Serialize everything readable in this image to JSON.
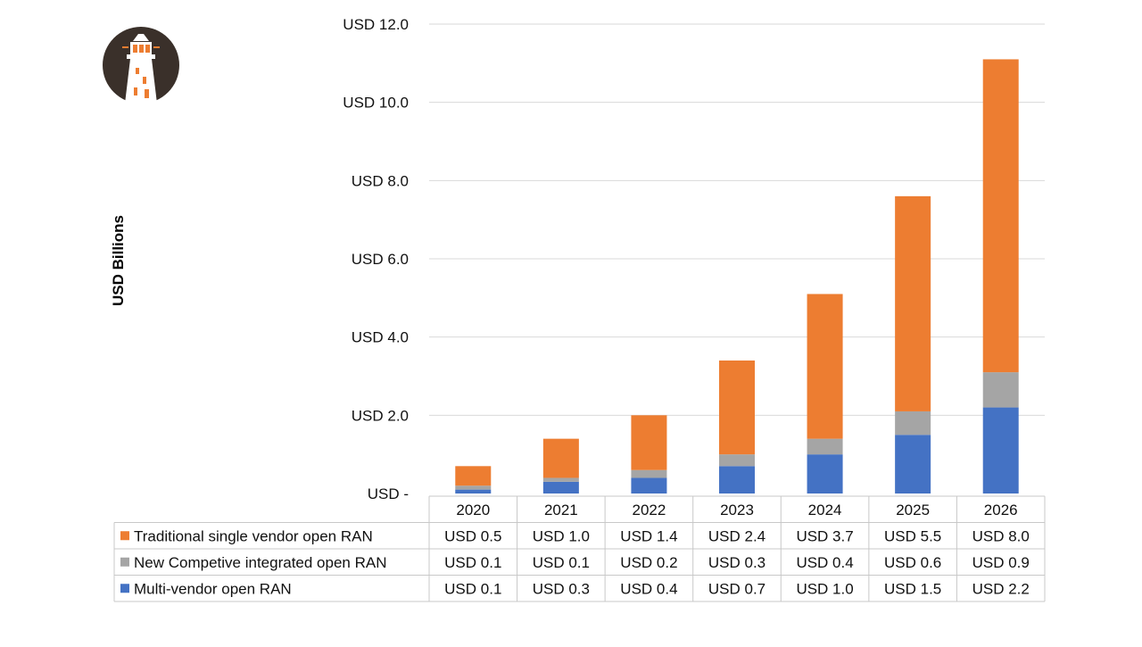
{
  "chart_data": {
    "type": "bar",
    "stacked": true,
    "categories": [
      "2020",
      "2021",
      "2022",
      "2023",
      "2024",
      "2025",
      "2026"
    ],
    "series": [
      {
        "name": "Multi-vendor open RAN",
        "color": "#4472c4",
        "values": [
          0.1,
          0.3,
          0.4,
          0.7,
          1.0,
          1.5,
          2.2
        ],
        "labels": [
          "USD 0.1",
          "USD 0.3",
          "USD 0.4",
          "USD 0.7",
          "USD 1.0",
          "USD 1.5",
          "USD 2.2"
        ]
      },
      {
        "name": "New Competive integrated open RAN",
        "color": "#a5a5a5",
        "values": [
          0.1,
          0.1,
          0.2,
          0.3,
          0.4,
          0.6,
          0.9
        ],
        "labels": [
          "USD 0.1",
          "USD 0.1",
          "USD 0.2",
          "USD 0.3",
          "USD 0.4",
          "USD 0.6",
          "USD 0.9"
        ]
      },
      {
        "name": "Traditional single vendor open RAN",
        "color": "#ed7d31",
        "values": [
          0.5,
          1.0,
          1.4,
          2.4,
          3.7,
          5.5,
          8.0
        ],
        "labels": [
          "USD 0.5",
          "USD 1.0",
          "USD 1.4",
          "USD 2.4",
          "USD 3.7",
          "USD 5.5",
          "USD 8.0"
        ]
      }
    ],
    "ylabel": "USD Billions",
    "ylim": [
      0,
      12
    ],
    "yticks": [
      0,
      2,
      4,
      6,
      8,
      10,
      12
    ],
    "yticklabels": [
      "USD -",
      "USD 2.0",
      "USD 4.0",
      "USD 6.0",
      "USD 8.0",
      "USD 10.0",
      "USD 12.0"
    ],
    "grid": true,
    "data_table": true,
    "table_row_order": [
      "Traditional single vendor open RAN",
      "New Competive integrated open RAN",
      "Multi-vendor open RAN"
    ]
  },
  "logo": {
    "name": "lighthouse-logo"
  }
}
